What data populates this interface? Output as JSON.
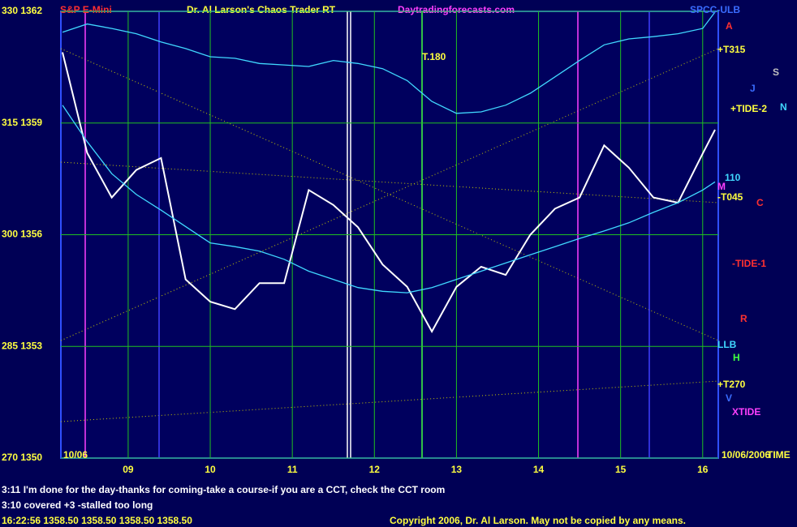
{
  "chart_data": {
    "type": "line",
    "subtitle": "S&P E-Mini",
    "title": "Dr. Al Larson's Chaos Trader RT",
    "site": "Daytradingforecasts.com",
    "x": [
      8.2,
      8.5,
      8.8,
      9.1,
      9.4,
      9.7,
      10,
      10.3,
      10.6,
      10.9,
      11.2,
      11.5,
      11.8,
      12.1,
      12.4,
      12.7,
      13,
      13.3,
      13.6,
      13.9,
      14.2,
      14.5,
      14.8,
      15.1,
      15.4,
      15.7,
      16,
      16.15
    ],
    "series": [
      {
        "color": "#ffffff",
        "values": [
          324.5,
          311,
          305,
          308.7,
          310.3,
          294,
          291,
          290,
          293.5,
          293.5,
          306,
          304,
          301,
          296,
          293,
          287,
          293,
          295.7,
          294.6,
          300,
          303.5,
          305,
          312,
          309,
          305,
          304.3,
          310.9,
          314.1
        ]
      },
      {
        "color": "#40d8ff",
        "values": [
          327.2,
          328.3,
          327.7,
          327,
          325.9,
          325,
          323.9,
          323.7,
          323,
          322.8,
          322.6,
          323.4,
          323,
          322.3,
          320.7,
          317.9,
          316.3,
          316.5,
          317.4,
          319,
          321.2,
          323.4,
          325.5,
          326.3,
          326.6,
          327,
          327.7,
          329.9
        ]
      },
      {
        "color": "#40d8ff",
        "values": [
          317.4,
          312.5,
          308.2,
          305.4,
          303.3,
          301.1,
          298.9,
          298.4,
          297.8,
          296.7,
          295.1,
          294,
          292.9,
          292.4,
          292.2,
          292.9,
          294,
          295.1,
          296.2,
          297.3,
          298.4,
          299.5,
          300.5,
          301.6,
          303,
          304.3,
          306,
          307.1
        ]
      }
    ],
    "xlim": [
      8.18,
      16.19
    ],
    "xticks": [
      {
        "value": 9,
        "label": "09"
      },
      10,
      11,
      12,
      13,
      14,
      15,
      16
    ],
    "ylim": [
      270,
      330
    ],
    "yticks": [
      {
        "value": 270,
        "label": "270  1350"
      },
      {
        "value": 285,
        "label": "285  1353"
      },
      {
        "value": 300,
        "label": "300  1356"
      },
      {
        "value": 315,
        "label": "315  1359"
      },
      {
        "value": 330,
        "label": "330  1362"
      }
    ],
    "grid": true,
    "annotations": [
      "SPCC-ULB",
      "A",
      "+T315",
      "S",
      "J",
      "+TIDE-2",
      "N",
      "110",
      "M",
      "-T045",
      "C",
      "-TIDE-1",
      "R",
      "LLB",
      "H",
      "+T270",
      "V",
      "XTIDE",
      "T.180",
      "10/06",
      "10/06/2006",
      "TIME"
    ],
    "messages": [
      "3:11 I'm done for the day-thanks for coming-take a course-if you are a CCT, check the CCT room",
      "3:10 covered +3 -stalled too long"
    ],
    "quote": "16:22:56  1358.50  1358.50  1358.50  1358.50",
    "copyright": "Copyright 2006, Dr. Al Larson. May not be copied by any means."
  }
}
